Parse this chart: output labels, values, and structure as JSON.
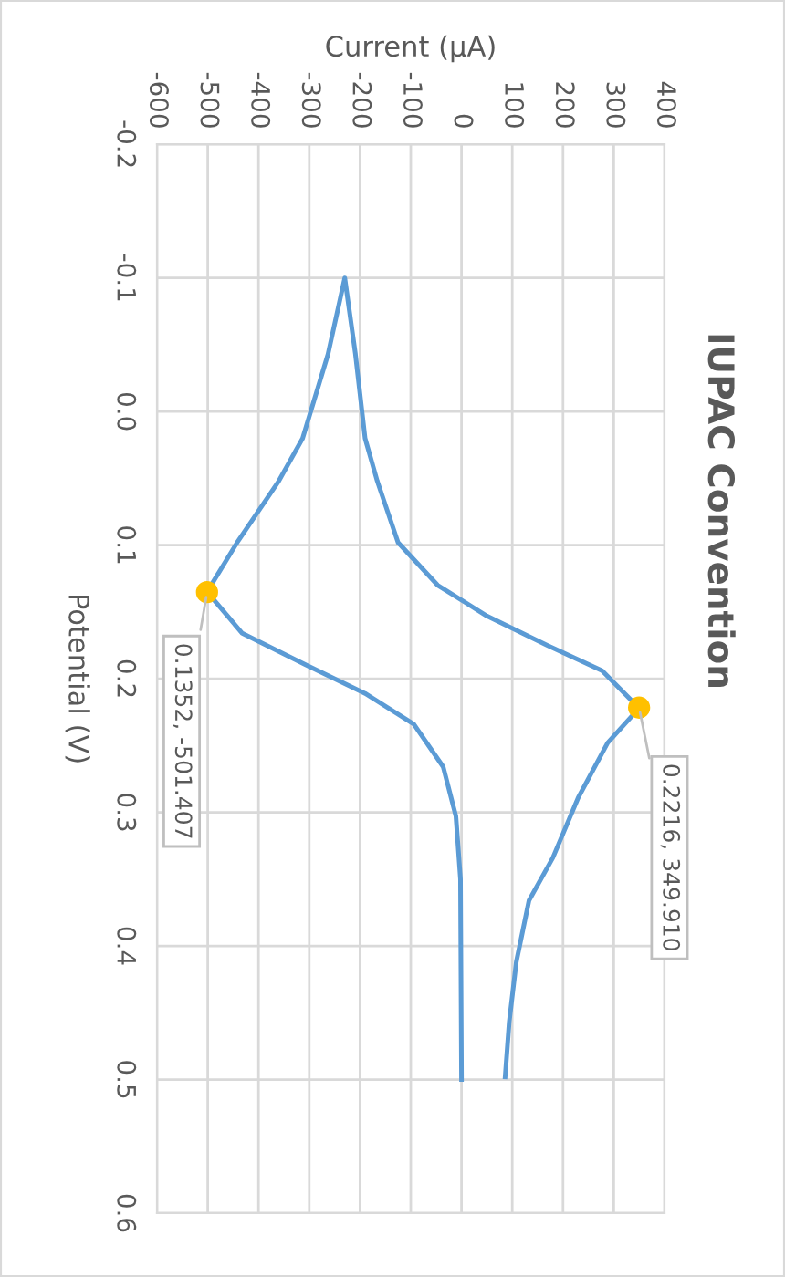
{
  "chart_data": {
    "type": "line",
    "title": "IUPAC Convention",
    "xlabel": "Current (µA)",
    "ylabel": "Potential (V)",
    "xlim": [
      -600,
      400
    ],
    "xticks": [
      -600,
      -500,
      -400,
      -300,
      -200,
      -100,
      0,
      100,
      200,
      300,
      400
    ],
    "ylim": [
      0.6,
      -0.2
    ],
    "yticks": [
      -0.2,
      -0.1,
      {
        "value": 0,
        "label": "0.0"
      },
      0.1,
      0.2,
      0.3,
      0.4,
      0.5,
      0.6
    ],
    "grid": true,
    "marker": "none",
    "line_style": "solid",
    "series": [
      {
        "color": "#5b9bd5",
        "values": [
          0.498,
          0.457,
          0.412,
          0.366,
          0.334,
          0.289,
          0.248,
          0.222,
          0.194,
          0.175,
          0.153,
          0.13,
          0.098,
          0.052,
          0.02,
          -0.043,
          -0.1,
          -0.043,
          0.02,
          0.052,
          0.098,
          0.135,
          0.166,
          0.189,
          0.211,
          0.234,
          0.266,
          0.303,
          0.35,
          0.5
        ],
        "x": [
          86,
          94,
          108,
          133,
          180,
          230,
          288,
          349.9,
          277,
          169,
          50,
          -47,
          -125,
          -166,
          -190,
          -209,
          -230,
          -263,
          -313,
          -360,
          -442,
          -501.4,
          -432,
          -310,
          -190,
          -94,
          -36,
          -11,
          -2,
          0
        ]
      },
      {
        "type": "scatter",
        "marker": "circle",
        "color": "#ffc000",
        "values": [
          0.1352,
          0.2216
        ],
        "x": [
          -501.407,
          349.91
        ],
        "value_labels": [
          "0.1352, -501.407",
          "0.2216, 349.910"
        ]
      }
    ]
  }
}
